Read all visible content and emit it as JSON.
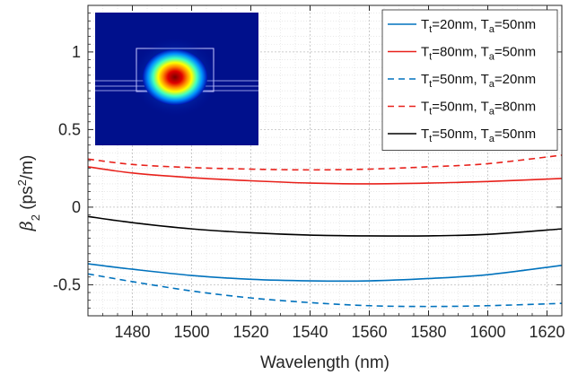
{
  "chart_data": {
    "type": "line",
    "xlabel": "Wavelength (nm)",
    "ylabel": {
      "symbol": "β",
      "sub": "2",
      "pre_unit": " (ps",
      "sup": "2",
      "post_unit": "/m)"
    },
    "xlim": [
      1465,
      1625
    ],
    "ylim": [
      -0.7,
      1.3
    ],
    "xticks": [
      1480,
      1500,
      1520,
      1540,
      1560,
      1580,
      1600,
      1620
    ],
    "yticks": [
      {
        "value": 1,
        "label": "1"
      },
      {
        "value": 0.5,
        "label": "0.5"
      },
      {
        "value": 0,
        "label": "0"
      },
      {
        "value": -0.5,
        "label": "-0.5"
      }
    ],
    "grid": true,
    "minor_grid": true,
    "legend_position": "top-right",
    "inset": "mode field distribution (heat map) of the waveguide cross-section, upper-left",
    "series": [
      {
        "label_parts": [
          "T",
          "t",
          "=20nm, T",
          "a",
          "=50nm"
        ],
        "color": "#0072BD",
        "dash": "solid",
        "x": [
          1465,
          1480,
          1500,
          1520,
          1540,
          1560,
          1580,
          1600,
          1625
        ],
        "y": [
          -0.365,
          -0.4,
          -0.44,
          -0.465,
          -0.475,
          -0.475,
          -0.46,
          -0.435,
          -0.375
        ]
      },
      {
        "label_parts": [
          "T",
          "t",
          "=80nm, T",
          "a",
          "=50nm"
        ],
        "color": "#E8211B",
        "dash": "solid",
        "x": [
          1465,
          1480,
          1500,
          1520,
          1540,
          1560,
          1580,
          1600,
          1625
        ],
        "y": [
          0.26,
          0.22,
          0.19,
          0.17,
          0.155,
          0.15,
          0.155,
          0.165,
          0.185
        ]
      },
      {
        "label_parts": [
          "T",
          "t",
          "=50nm, T",
          "a",
          "=20nm"
        ],
        "color": "#0072BD",
        "dash": "dashed",
        "x": [
          1465,
          1480,
          1500,
          1520,
          1540,
          1560,
          1580,
          1600,
          1625
        ],
        "y": [
          -0.43,
          -0.48,
          -0.54,
          -0.585,
          -0.615,
          -0.635,
          -0.64,
          -0.635,
          -0.62
        ]
      },
      {
        "label_parts": [
          "T",
          "t",
          "=50nm, T",
          "a",
          "=80nm"
        ],
        "color": "#E8211B",
        "dash": "dashed",
        "x": [
          1465,
          1480,
          1500,
          1520,
          1540,
          1560,
          1580,
          1600,
          1625
        ],
        "y": [
          0.31,
          0.275,
          0.255,
          0.245,
          0.24,
          0.245,
          0.26,
          0.28,
          0.335
        ]
      },
      {
        "label_parts": [
          "T",
          "t",
          "=50nm, T",
          "a",
          "=50nm"
        ],
        "color": "#000000",
        "dash": "solid",
        "x": [
          1465,
          1480,
          1500,
          1520,
          1540,
          1560,
          1580,
          1600,
          1625
        ],
        "y": [
          -0.06,
          -0.1,
          -0.14,
          -0.165,
          -0.18,
          -0.185,
          -0.185,
          -0.175,
          -0.14
        ]
      }
    ]
  }
}
